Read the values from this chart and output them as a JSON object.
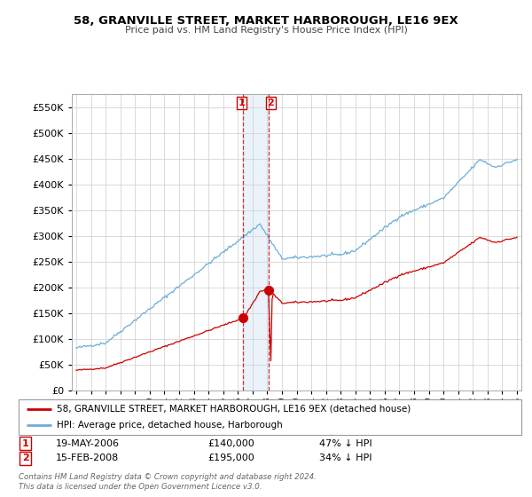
{
  "title": "58, GRANVILLE STREET, MARKET HARBOROUGH, LE16 9EX",
  "subtitle": "Price paid vs. HM Land Registry's House Price Index (HPI)",
  "ylim": [
    0,
    575000
  ],
  "yticks": [
    0,
    50000,
    100000,
    150000,
    200000,
    250000,
    300000,
    350000,
    400000,
    450000,
    500000,
    550000
  ],
  "sale1_date": "19-MAY-2006",
  "sale1_price": 140000,
  "sale1_year": 2006.375,
  "sale2_date": "15-FEB-2008",
  "sale2_price": 195000,
  "sale2_year": 2008.125,
  "legend_property": "58, GRANVILLE STREET, MARKET HARBOROUGH, LE16 9EX (detached house)",
  "legend_hpi": "HPI: Average price, detached house, Harborough",
  "footer": "Contains HM Land Registry data © Crown copyright and database right 2024.\nThis data is licensed under the Open Government Licence v3.0.",
  "sale1_pct": "47% ↓ HPI",
  "sale2_pct": "34% ↓ HPI",
  "property_line_color": "#cc0000",
  "hpi_line_color": "#6baed6",
  "vline_color": "#cc0000",
  "vspan_color": "#c6dbef",
  "grid_color": "#cccccc"
}
